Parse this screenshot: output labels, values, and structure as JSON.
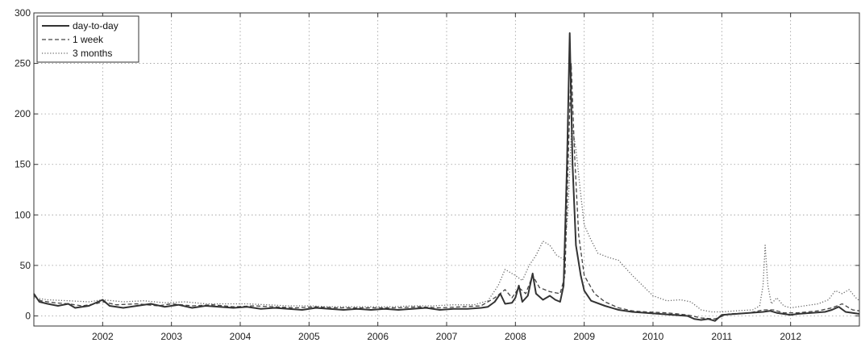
{
  "chart_data": {
    "type": "line",
    "title": "",
    "xlabel": "",
    "ylabel": "",
    "xlim": [
      2001.0,
      2013.0
    ],
    "ylim": [
      -10,
      300
    ],
    "x_ticks": [
      2002,
      2003,
      2004,
      2005,
      2006,
      2007,
      2008,
      2009,
      2010,
      2011,
      2012
    ],
    "y_ticks": [
      0,
      50,
      100,
      150,
      200,
      250,
      300
    ],
    "grid": true,
    "legend_position": "top-left",
    "series": [
      {
        "name": "day-to-day",
        "style": "solid",
        "color": "#333333",
        "points": [
          [
            2001.0,
            22
          ],
          [
            2001.08,
            14
          ],
          [
            2001.2,
            12
          ],
          [
            2001.35,
            10
          ],
          [
            2001.5,
            12
          ],
          [
            2001.6,
            8
          ],
          [
            2001.8,
            10
          ],
          [
            2002.0,
            16
          ],
          [
            2002.1,
            10
          ],
          [
            2002.3,
            8
          ],
          [
            2002.5,
            10
          ],
          [
            2002.7,
            12
          ],
          [
            2002.9,
            9
          ],
          [
            2003.1,
            11
          ],
          [
            2003.3,
            8
          ],
          [
            2003.5,
            10
          ],
          [
            2003.7,
            9
          ],
          [
            2003.9,
            8
          ],
          [
            2004.1,
            9
          ],
          [
            2004.3,
            7
          ],
          [
            2004.5,
            8
          ],
          [
            2004.7,
            7
          ],
          [
            2004.9,
            6
          ],
          [
            2005.1,
            8
          ],
          [
            2005.3,
            7
          ],
          [
            2005.5,
            6
          ],
          [
            2005.7,
            7
          ],
          [
            2005.9,
            6
          ],
          [
            2006.1,
            7
          ],
          [
            2006.3,
            6
          ],
          [
            2006.5,
            7
          ],
          [
            2006.7,
            8
          ],
          [
            2006.9,
            6
          ],
          [
            2007.1,
            7
          ],
          [
            2007.3,
            7
          ],
          [
            2007.5,
            8
          ],
          [
            2007.6,
            9
          ],
          [
            2007.7,
            14
          ],
          [
            2007.78,
            22
          ],
          [
            2007.85,
            12
          ],
          [
            2007.95,
            13
          ],
          [
            2008.0,
            18
          ],
          [
            2008.05,
            30
          ],
          [
            2008.1,
            14
          ],
          [
            2008.18,
            20
          ],
          [
            2008.25,
            42
          ],
          [
            2008.3,
            22
          ],
          [
            2008.4,
            16
          ],
          [
            2008.5,
            20
          ],
          [
            2008.58,
            16
          ],
          [
            2008.65,
            14
          ],
          [
            2008.7,
            30
          ],
          [
            2008.75,
            150
          ],
          [
            2008.79,
            280
          ],
          [
            2008.83,
            150
          ],
          [
            2008.88,
            70
          ],
          [
            2008.95,
            40
          ],
          [
            2009.0,
            25
          ],
          [
            2009.1,
            15
          ],
          [
            2009.3,
            10
          ],
          [
            2009.5,
            6
          ],
          [
            2009.7,
            4
          ],
          [
            2009.9,
            3
          ],
          [
            2010.1,
            2
          ],
          [
            2010.3,
            1
          ],
          [
            2010.5,
            0
          ],
          [
            2010.6,
            -3
          ],
          [
            2010.7,
            -4
          ],
          [
            2010.8,
            -3
          ],
          [
            2010.9,
            -5
          ],
          [
            2011.0,
            1
          ],
          [
            2011.2,
            2
          ],
          [
            2011.4,
            3
          ],
          [
            2011.6,
            4
          ],
          [
            2011.7,
            5
          ],
          [
            2011.8,
            3
          ],
          [
            2011.9,
            2
          ],
          [
            2012.0,
            1
          ],
          [
            2012.1,
            2
          ],
          [
            2012.3,
            3
          ],
          [
            2012.5,
            4
          ],
          [
            2012.6,
            6
          ],
          [
            2012.7,
            9
          ],
          [
            2012.8,
            4
          ],
          [
            2012.9,
            3
          ],
          [
            2013.0,
            2
          ]
        ]
      },
      {
        "name": "1 week",
        "style": "dashed",
        "color": "#444444",
        "points": [
          [
            2001.0,
            20
          ],
          [
            2001.1,
            15
          ],
          [
            2001.3,
            13
          ],
          [
            2001.5,
            12
          ],
          [
            2001.7,
            10
          ],
          [
            2001.9,
            12
          ],
          [
            2002.0,
            14
          ],
          [
            2002.2,
            11
          ],
          [
            2002.5,
            12
          ],
          [
            2002.8,
            10
          ],
          [
            2003.0,
            12
          ],
          [
            2003.3,
            10
          ],
          [
            2003.6,
            11
          ],
          [
            2003.9,
            9
          ],
          [
            2004.2,
            10
          ],
          [
            2004.5,
            9
          ],
          [
            2004.8,
            8
          ],
          [
            2005.1,
            9
          ],
          [
            2005.4,
            8
          ],
          [
            2005.7,
            8
          ],
          [
            2006.0,
            8
          ],
          [
            2006.3,
            8
          ],
          [
            2006.6,
            9
          ],
          [
            2006.9,
            8
          ],
          [
            2007.2,
            9
          ],
          [
            2007.5,
            10
          ],
          [
            2007.7,
            18
          ],
          [
            2007.85,
            26
          ],
          [
            2007.95,
            18
          ],
          [
            2008.05,
            28
          ],
          [
            2008.15,
            22
          ],
          [
            2008.25,
            40
          ],
          [
            2008.35,
            28
          ],
          [
            2008.5,
            24
          ],
          [
            2008.65,
            22
          ],
          [
            2008.72,
            40
          ],
          [
            2008.77,
            160
          ],
          [
            2008.81,
            250
          ],
          [
            2008.86,
            160
          ],
          [
            2008.92,
            80
          ],
          [
            2009.0,
            40
          ],
          [
            2009.15,
            22
          ],
          [
            2009.3,
            14
          ],
          [
            2009.5,
            8
          ],
          [
            2009.7,
            5
          ],
          [
            2009.9,
            4
          ],
          [
            2010.2,
            3
          ],
          [
            2010.5,
            1
          ],
          [
            2010.7,
            -2
          ],
          [
            2010.9,
            -3
          ],
          [
            2011.1,
            2
          ],
          [
            2011.4,
            3
          ],
          [
            2011.6,
            6
          ],
          [
            2011.75,
            6
          ],
          [
            2011.9,
            3
          ],
          [
            2012.1,
            3
          ],
          [
            2012.4,
            5
          ],
          [
            2012.6,
            8
          ],
          [
            2012.75,
            12
          ],
          [
            2012.9,
            6
          ],
          [
            2013.0,
            5
          ]
        ]
      },
      {
        "name": "3 months",
        "style": "dotted",
        "color": "#666666",
        "points": [
          [
            2001.0,
            18
          ],
          [
            2001.2,
            16
          ],
          [
            2001.5,
            15
          ],
          [
            2001.8,
            14
          ],
          [
            2002.0,
            16
          ],
          [
            2002.3,
            14
          ],
          [
            2002.6,
            15
          ],
          [
            2002.9,
            13
          ],
          [
            2003.2,
            14
          ],
          [
            2003.5,
            12
          ],
          [
            2003.8,
            12
          ],
          [
            2004.1,
            12
          ],
          [
            2004.4,
            11
          ],
          [
            2004.7,
            10
          ],
          [
            2005.0,
            10
          ],
          [
            2005.3,
            9
          ],
          [
            2005.6,
            9
          ],
          [
            2005.9,
            9
          ],
          [
            2006.2,
            9
          ],
          [
            2006.5,
            10
          ],
          [
            2006.8,
            10
          ],
          [
            2007.1,
            11
          ],
          [
            2007.4,
            11
          ],
          [
            2007.6,
            15
          ],
          [
            2007.75,
            30
          ],
          [
            2007.85,
            46
          ],
          [
            2008.0,
            40
          ],
          [
            2008.1,
            35
          ],
          [
            2008.2,
            50
          ],
          [
            2008.3,
            60
          ],
          [
            2008.4,
            74
          ],
          [
            2008.5,
            70
          ],
          [
            2008.6,
            60
          ],
          [
            2008.7,
            56
          ],
          [
            2008.76,
            100
          ],
          [
            2008.82,
            190
          ],
          [
            2008.88,
            165
          ],
          [
            2008.95,
            120
          ],
          [
            2009.0,
            90
          ],
          [
            2009.1,
            75
          ],
          [
            2009.2,
            62
          ],
          [
            2009.35,
            58
          ],
          [
            2009.5,
            55
          ],
          [
            2009.7,
            40
          ],
          [
            2009.85,
            30
          ],
          [
            2010.0,
            20
          ],
          [
            2010.2,
            15
          ],
          [
            2010.4,
            16
          ],
          [
            2010.55,
            14
          ],
          [
            2010.7,
            6
          ],
          [
            2010.85,
            4
          ],
          [
            2011.0,
            4
          ],
          [
            2011.2,
            5
          ],
          [
            2011.45,
            6
          ],
          [
            2011.55,
            10
          ],
          [
            2011.6,
            30
          ],
          [
            2011.63,
            70
          ],
          [
            2011.67,
            30
          ],
          [
            2011.72,
            12
          ],
          [
            2011.8,
            18
          ],
          [
            2011.9,
            10
          ],
          [
            2012.0,
            8
          ],
          [
            2012.2,
            10
          ],
          [
            2012.4,
            12
          ],
          [
            2012.55,
            16
          ],
          [
            2012.65,
            25
          ],
          [
            2012.75,
            22
          ],
          [
            2012.85,
            26
          ],
          [
            2012.95,
            18
          ],
          [
            2013.0,
            15
          ]
        ]
      }
    ]
  }
}
